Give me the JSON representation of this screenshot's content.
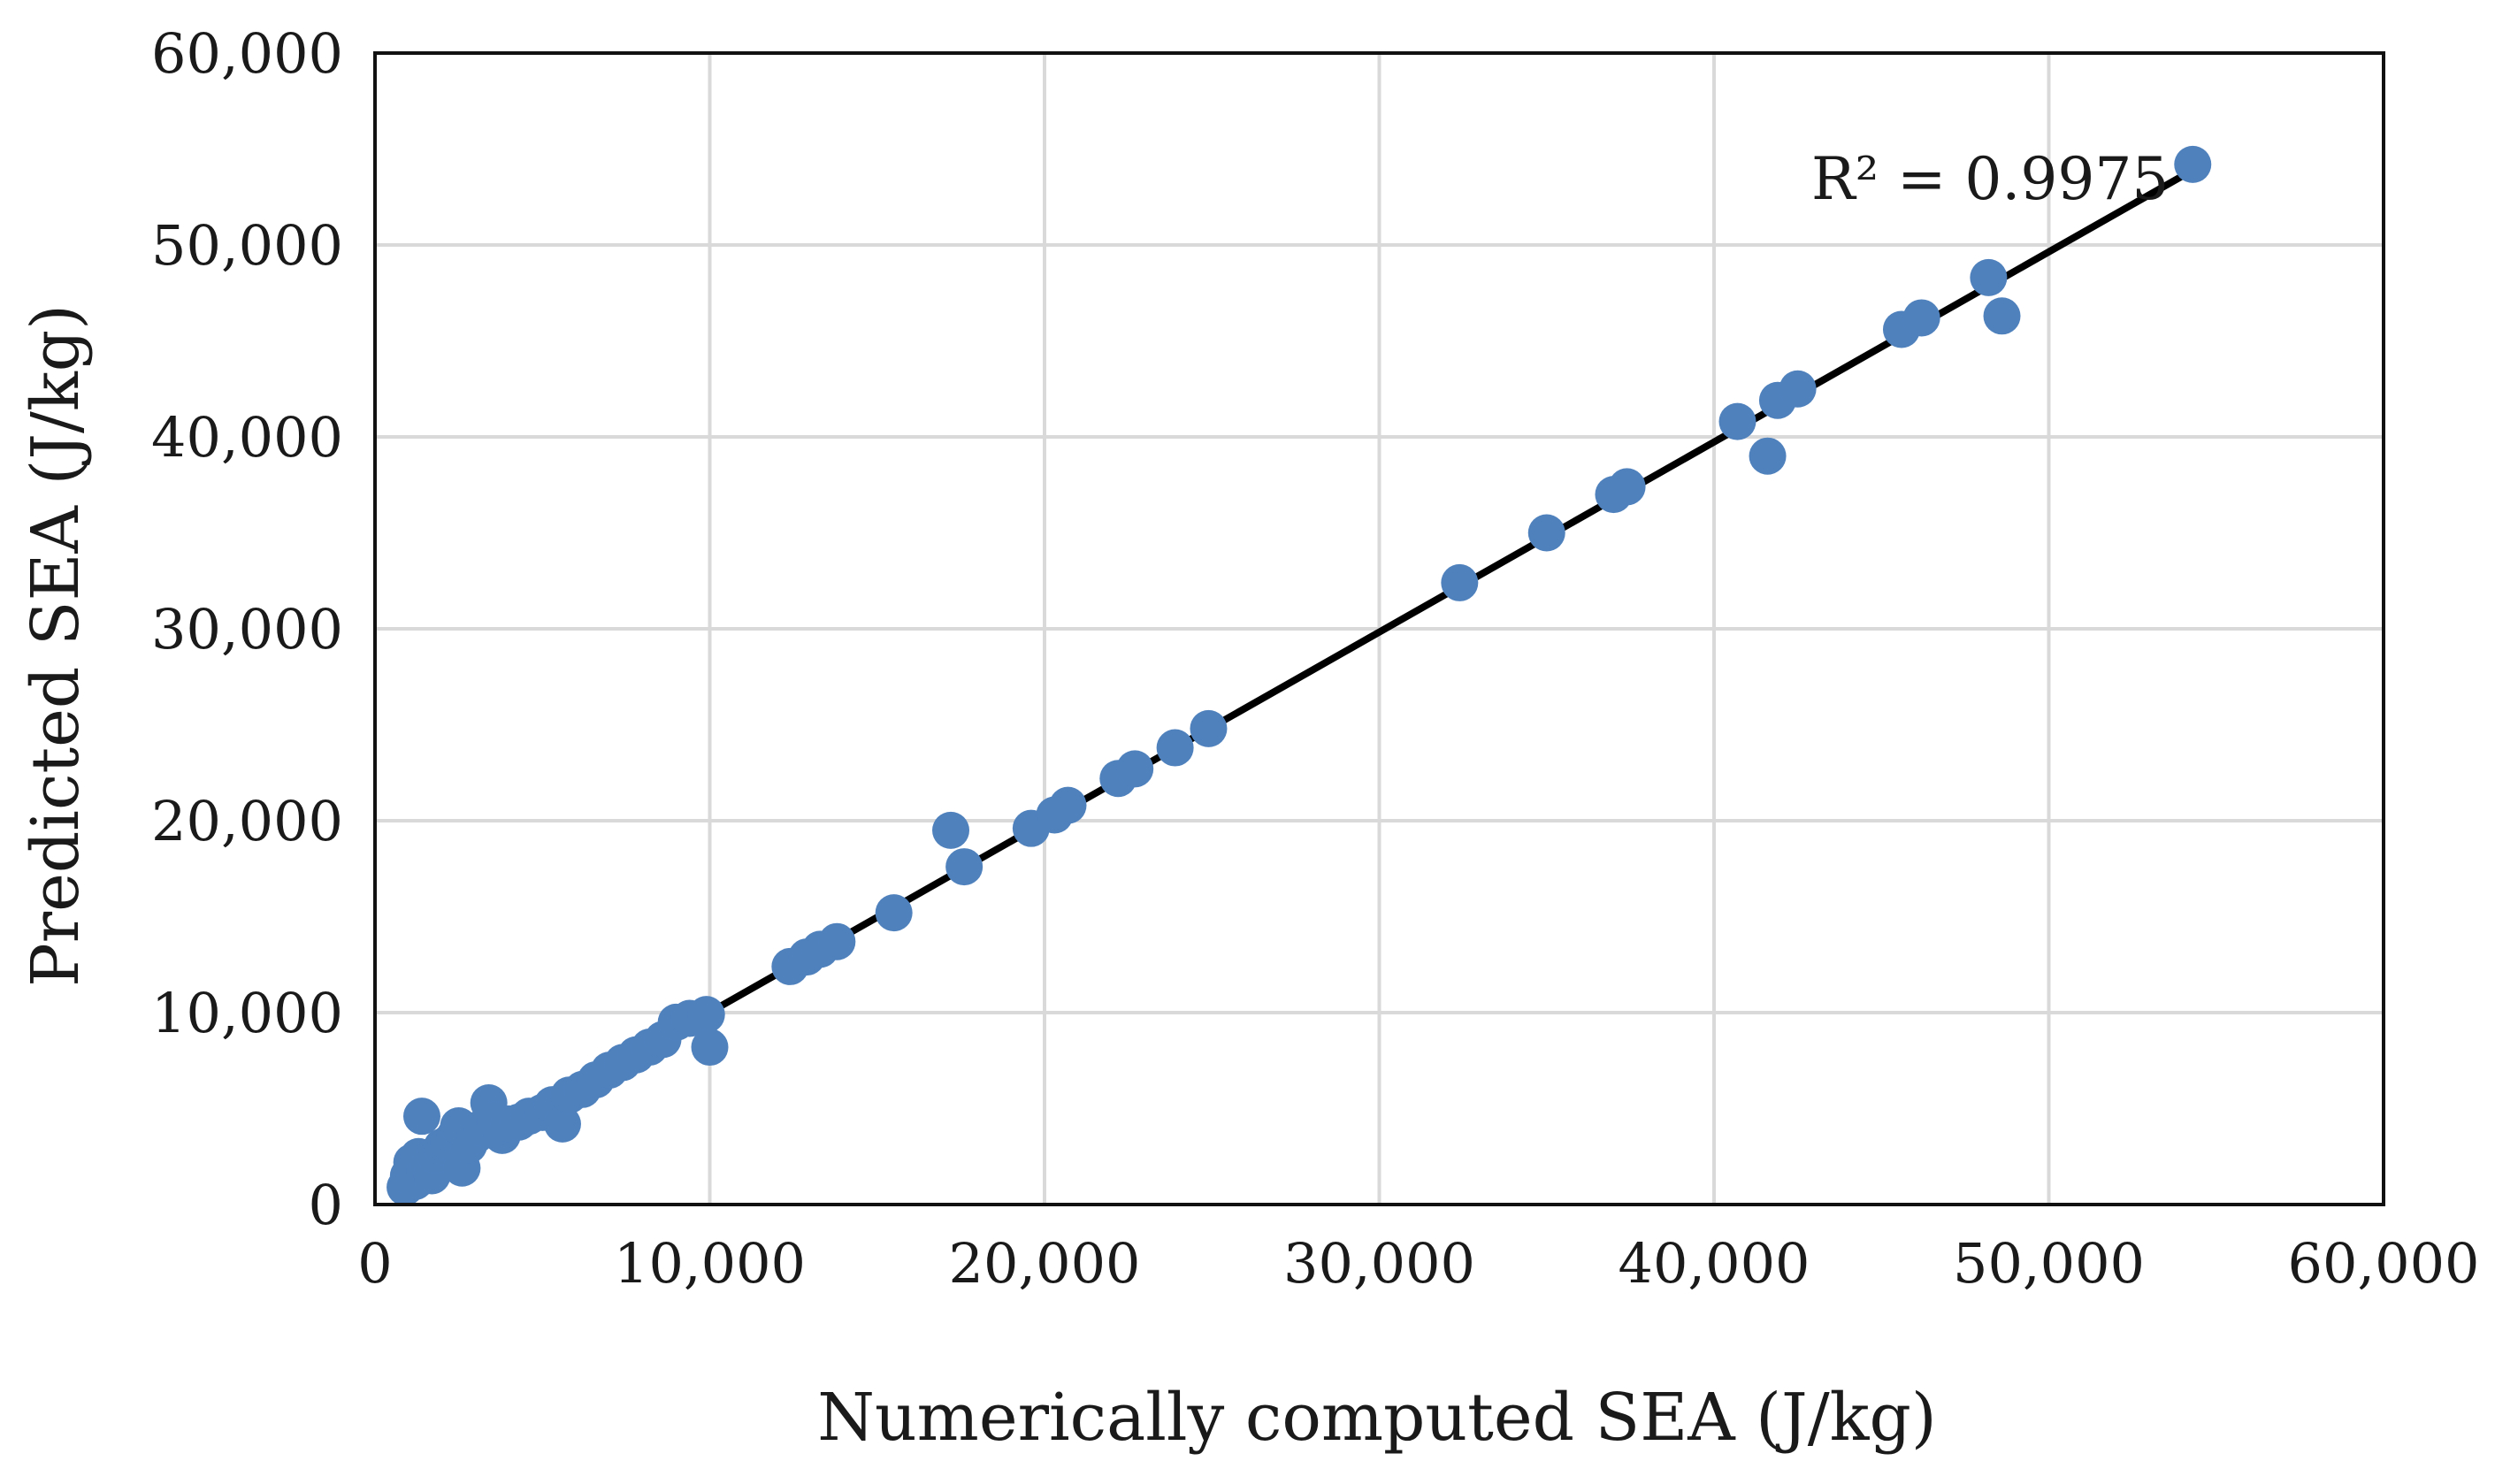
{
  "chart_data": {
    "type": "scatter",
    "title": "",
    "xlabel": "Numerically computed SEA (J/kg)",
    "ylabel": "Predicted SEA (J/kg)",
    "xlim": [
      0,
      60000
    ],
    "ylim": [
      0,
      60000
    ],
    "x_ticks": [
      0,
      10000,
      20000,
      30000,
      40000,
      50000,
      60000
    ],
    "y_ticks": [
      0,
      10000,
      20000,
      30000,
      40000,
      50000,
      60000
    ],
    "x_tick_labels": [
      "0",
      "10,000",
      "20,000",
      "30,000",
      "40,000",
      "50,000",
      "60,000"
    ],
    "y_tick_labels": [
      "0",
      "10,000",
      "20,000",
      "30,000",
      "40,000",
      "50,000",
      "60,000"
    ],
    "grid": true,
    "legend": null,
    "point_color": "#4f81bd",
    "trendline_color": "#000000",
    "annotation": "R² = 0.9975",
    "trendline": {
      "x": [
        1000,
        54300
      ],
      "y": [
        1100,
        53900
      ]
    },
    "series": [
      {
        "name": "SEA",
        "points": [
          [
            900,
            900
          ],
          [
            1000,
            1500
          ],
          [
            1100,
            2200
          ],
          [
            1200,
            1200
          ],
          [
            1300,
            2500
          ],
          [
            1400,
            4600
          ],
          [
            1500,
            1800
          ],
          [
            1600,
            2000
          ],
          [
            1700,
            1500
          ],
          [
            1800,
            2600
          ],
          [
            2000,
            3000
          ],
          [
            2200,
            3200
          ],
          [
            2400,
            3600
          ],
          [
            2500,
            4100
          ],
          [
            2600,
            1900
          ],
          [
            2800,
            3100
          ],
          [
            3000,
            3600
          ],
          [
            3200,
            4000
          ],
          [
            3400,
            5300
          ],
          [
            3600,
            4400
          ],
          [
            3800,
            3600
          ],
          [
            4000,
            4200
          ],
          [
            4300,
            4300
          ],
          [
            4600,
            4600
          ],
          [
            5000,
            4800
          ],
          [
            5300,
            5200
          ],
          [
            5600,
            4200
          ],
          [
            5800,
            5700
          ],
          [
            6200,
            6000
          ],
          [
            6600,
            6500
          ],
          [
            7000,
            7000
          ],
          [
            7400,
            7400
          ],
          [
            7800,
            7800
          ],
          [
            8200,
            8200
          ],
          [
            8600,
            8600
          ],
          [
            9000,
            9500
          ],
          [
            9400,
            9700
          ],
          [
            9900,
            9900
          ],
          [
            10000,
            8200
          ],
          [
            12400,
            12400
          ],
          [
            12900,
            12900
          ],
          [
            13300,
            13300
          ],
          [
            13800,
            13700
          ],
          [
            15500,
            15200
          ],
          [
            17200,
            19500
          ],
          [
            17600,
            17600
          ],
          [
            19600,
            19600
          ],
          [
            20300,
            20300
          ],
          [
            20700,
            20800
          ],
          [
            22200,
            22200
          ],
          [
            22700,
            22700
          ],
          [
            23900,
            23800
          ],
          [
            24900,
            24800
          ],
          [
            32400,
            32400
          ],
          [
            35000,
            35000
          ],
          [
            37000,
            37000
          ],
          [
            37400,
            37400
          ],
          [
            40700,
            40800
          ],
          [
            41600,
            39000
          ],
          [
            41900,
            41900
          ],
          [
            42500,
            42500
          ],
          [
            45600,
            45600
          ],
          [
            46200,
            46200
          ],
          [
            48200,
            48300
          ],
          [
            48600,
            46300
          ],
          [
            54300,
            54200
          ]
        ]
      }
    ]
  }
}
